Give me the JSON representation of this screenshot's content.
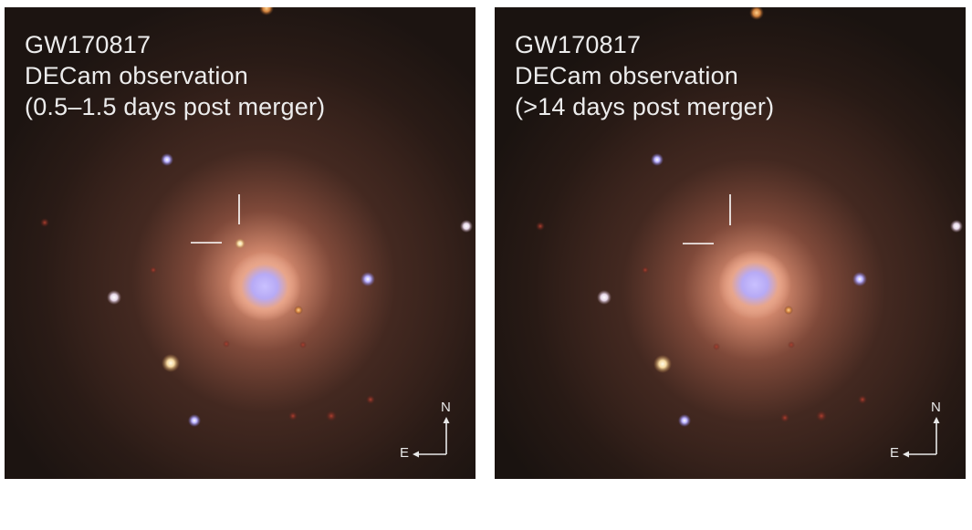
{
  "figure": {
    "panels": [
      {
        "id": "left",
        "caption_lines": [
          "GW170817",
          "DECam observation",
          "(0.5–1.5 days post merger)"
        ],
        "transient_visible": true
      },
      {
        "id": "right",
        "caption_lines": [
          "GW170817",
          "DECam observation",
          "(>14 days post merger)"
        ],
        "transient_visible": false
      }
    ],
    "compass": {
      "north_label": "N",
      "east_label": "E"
    },
    "colors": {
      "sky_background": "#1e1512",
      "galaxy_core": "#bcb2ff",
      "galaxy_halo": "#e8a07a",
      "marker_lines": "#ffffff"
    }
  }
}
